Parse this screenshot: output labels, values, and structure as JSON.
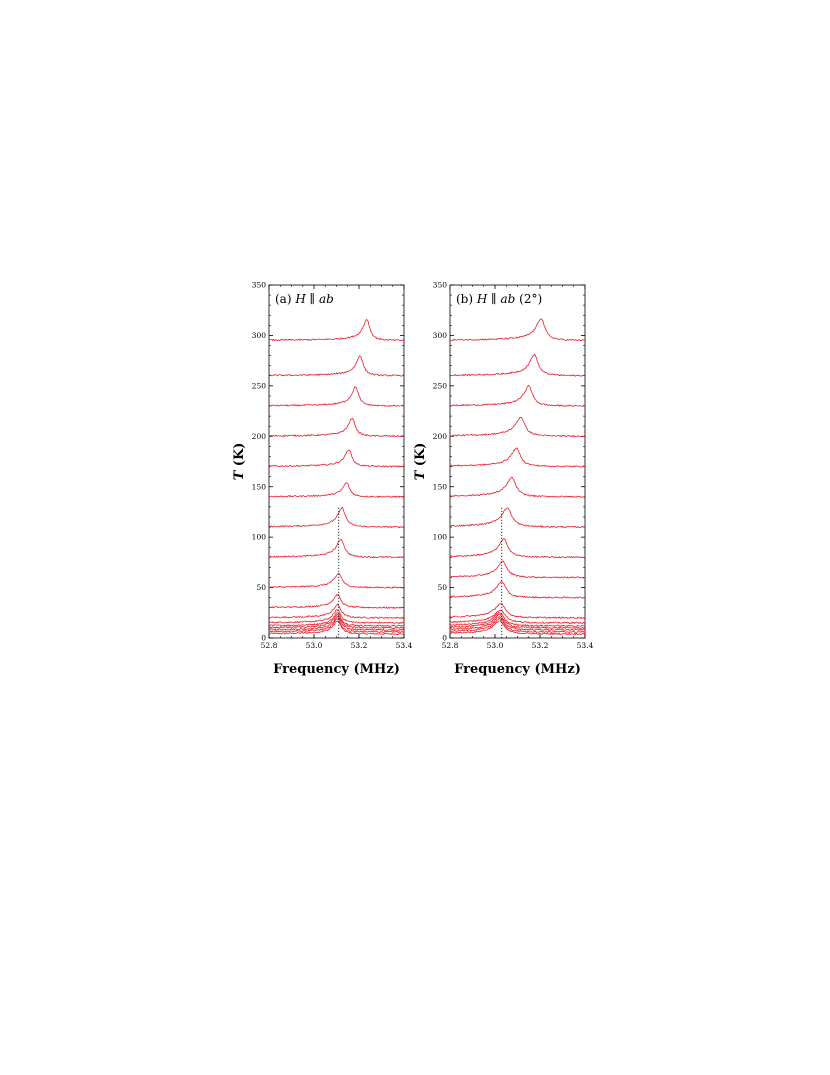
{
  "chart_data": [
    {
      "type": "line",
      "panel_label": "(a)",
      "title_parts": {
        "label": "(a) ",
        "h": "H",
        "parallel": " ∥ ",
        "plane": "ab",
        "suffix": ""
      },
      "xlabel": "Frequency (MHz)",
      "ylabel_var": "T",
      "ylabel_unit": " (K)",
      "xlim": [
        52.8,
        53.4
      ],
      "ylim": [
        0,
        350
      ],
      "xticks": [
        "52.8",
        "53.0",
        "53.2",
        "53.4"
      ],
      "yticks": [
        "0",
        "50",
        "100",
        "150",
        "200",
        "250",
        "300",
        "350"
      ],
      "series_description": "NMR spectra, each offset vertically by its temperature T",
      "line_color": "#e8202a",
      "marker_line": {
        "x": 53.11,
        "y_range": [
          0,
          130
        ],
        "style": "dotted"
      },
      "series": [
        {
          "T": 4,
          "peak_freq": 53.105,
          "amplitude": 13,
          "width": 0.018
        },
        {
          "T": 6,
          "peak_freq": 53.105,
          "amplitude": 13,
          "width": 0.018
        },
        {
          "T": 8,
          "peak_freq": 53.105,
          "amplitude": 13,
          "width": 0.018
        },
        {
          "T": 10,
          "peak_freq": 53.105,
          "amplitude": 13,
          "width": 0.018
        },
        {
          "T": 12,
          "peak_freq": 53.105,
          "amplitude": 13,
          "width": 0.018
        },
        {
          "T": 15,
          "peak_freq": 53.105,
          "amplitude": 13,
          "width": 0.018
        },
        {
          "T": 20,
          "peak_freq": 53.105,
          "amplitude": 13,
          "width": 0.018
        },
        {
          "T": 30,
          "peak_freq": 53.105,
          "amplitude": 13,
          "width": 0.018
        },
        {
          "T": 50,
          "peak_freq": 53.11,
          "amplitude": 14,
          "width": 0.018
        },
        {
          "T": 80,
          "peak_freq": 53.12,
          "amplitude": 18,
          "width": 0.018
        },
        {
          "T": 110,
          "peak_freq": 53.125,
          "amplitude": 19,
          "width": 0.018
        },
        {
          "T": 140,
          "peak_freq": 53.145,
          "amplitude": 14,
          "width": 0.016
        },
        {
          "T": 170,
          "peak_freq": 53.155,
          "amplitude": 17,
          "width": 0.016
        },
        {
          "T": 200,
          "peak_freq": 53.17,
          "amplitude": 18,
          "width": 0.016
        },
        {
          "T": 230,
          "peak_freq": 53.185,
          "amplitude": 19,
          "width": 0.016
        },
        {
          "T": 260,
          "peak_freq": 53.205,
          "amplitude": 20,
          "width": 0.016
        },
        {
          "T": 295,
          "peak_freq": 53.235,
          "amplitude": 21,
          "width": 0.016
        }
      ]
    },
    {
      "type": "line",
      "panel_label": "(b)",
      "title_parts": {
        "label": "(b) ",
        "h": "H",
        "parallel": " ∥ ",
        "plane": "ab",
        "suffix": " (2°)"
      },
      "xlabel": "Frequency (MHz)",
      "ylabel_var": "T",
      "ylabel_unit": " (K)",
      "xlim": [
        52.8,
        53.4
      ],
      "ylim": [
        0,
        350
      ],
      "xticks": [
        "52.8",
        "53.0",
        "53.2",
        "53.4"
      ],
      "yticks": [
        "0",
        "50",
        "100",
        "150",
        "200",
        "250",
        "300",
        "350"
      ],
      "series_description": "NMR spectra, each offset vertically by its temperature T",
      "line_color": "#e8202a",
      "marker_line": {
        "x": 53.03,
        "y_range": [
          0,
          130
        ],
        "style": "dotted"
      },
      "series": [
        {
          "T": 4,
          "peak_freq": 53.02,
          "amplitude": 13,
          "width": 0.025
        },
        {
          "T": 6,
          "peak_freq": 53.02,
          "amplitude": 13,
          "width": 0.025
        },
        {
          "T": 8,
          "peak_freq": 53.02,
          "amplitude": 13,
          "width": 0.025
        },
        {
          "T": 10,
          "peak_freq": 53.02,
          "amplitude": 13,
          "width": 0.025
        },
        {
          "T": 12,
          "peak_freq": 53.02,
          "amplitude": 13,
          "width": 0.025
        },
        {
          "T": 15,
          "peak_freq": 53.025,
          "amplitude": 13,
          "width": 0.025
        },
        {
          "T": 20,
          "peak_freq": 53.025,
          "amplitude": 14,
          "width": 0.025
        },
        {
          "T": 40,
          "peak_freq": 53.03,
          "amplitude": 16,
          "width": 0.022
        },
        {
          "T": 60,
          "peak_freq": 53.035,
          "amplitude": 16,
          "width": 0.022
        },
        {
          "T": 80,
          "peak_freq": 53.04,
          "amplitude": 18,
          "width": 0.022
        },
        {
          "T": 110,
          "peak_freq": 53.055,
          "amplitude": 19,
          "width": 0.024
        },
        {
          "T": 140,
          "peak_freq": 53.075,
          "amplitude": 19,
          "width": 0.022
        },
        {
          "T": 170,
          "peak_freq": 53.095,
          "amplitude": 18,
          "width": 0.022
        },
        {
          "T": 200,
          "peak_freq": 53.115,
          "amplitude": 19,
          "width": 0.022
        },
        {
          "T": 230,
          "peak_freq": 53.15,
          "amplitude": 20,
          "width": 0.02
        },
        {
          "T": 260,
          "peak_freq": 53.175,
          "amplitude": 21,
          "width": 0.02
        },
        {
          "T": 295,
          "peak_freq": 53.205,
          "amplitude": 22,
          "width": 0.02
        }
      ]
    }
  ]
}
